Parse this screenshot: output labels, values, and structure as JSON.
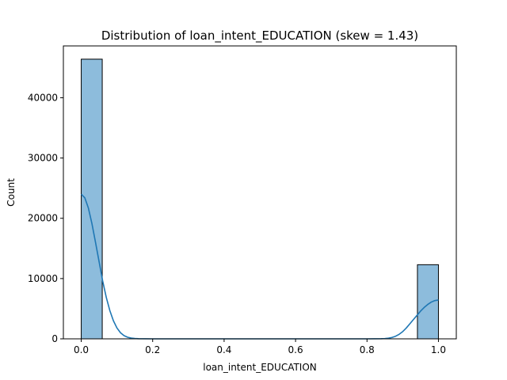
{
  "chart_data": {
    "type": "bar",
    "title": "Distribution of loan_intent_EDUCATION (skew = 1.43)",
    "xlabel": "loan_intent_EDUCATION",
    "ylabel": "Count",
    "xlim": [
      -0.05,
      1.05
    ],
    "ylim": [
      0,
      48600
    ],
    "x_ticks": [
      0.0,
      0.2,
      0.4,
      0.6,
      0.8,
      1.0
    ],
    "x_tick_labels": [
      "0.0",
      "0.2",
      "0.4",
      "0.6",
      "0.8",
      "1.0"
    ],
    "y_ticks": [
      0,
      10000,
      20000,
      30000,
      40000
    ],
    "y_tick_labels": [
      "0",
      "10000",
      "20000",
      "30000",
      "40000"
    ],
    "bars": [
      {
        "x0": 0.0,
        "x1": 0.0588,
        "count": 46400
      },
      {
        "x0": 0.9412,
        "x1": 1.0,
        "count": 12300
      }
    ],
    "kde": {
      "x": [
        0.0,
        0.01,
        0.02,
        0.03,
        0.04,
        0.05,
        0.06,
        0.07,
        0.08,
        0.09,
        0.1,
        0.11,
        0.12,
        0.13,
        0.14,
        0.15,
        0.16,
        0.2,
        0.3,
        0.4,
        0.5,
        0.6,
        0.7,
        0.8,
        0.84,
        0.85,
        0.86,
        0.87,
        0.88,
        0.89,
        0.9,
        0.91,
        0.92,
        0.93,
        0.94,
        0.95,
        0.96,
        0.97,
        0.98,
        0.99,
        1.0
      ],
      "y": [
        24000,
        23400,
        21700,
        19100,
        16000,
        12800,
        9600,
        6900,
        4700,
        3000,
        1800,
        1000,
        530,
        260,
        120,
        60,
        20,
        0,
        0,
        0,
        0,
        0,
        0,
        0,
        20,
        50,
        110,
        230,
        430,
        750,
        1200,
        1800,
        2500,
        3200,
        3900,
        4600,
        5200,
        5700,
        6100,
        6350,
        6450
      ]
    },
    "bar_color": "#8dbcdc",
    "bar_edge_color": "#000000",
    "kde_color": "#1f77b4",
    "grid": false,
    "legend": "none"
  }
}
